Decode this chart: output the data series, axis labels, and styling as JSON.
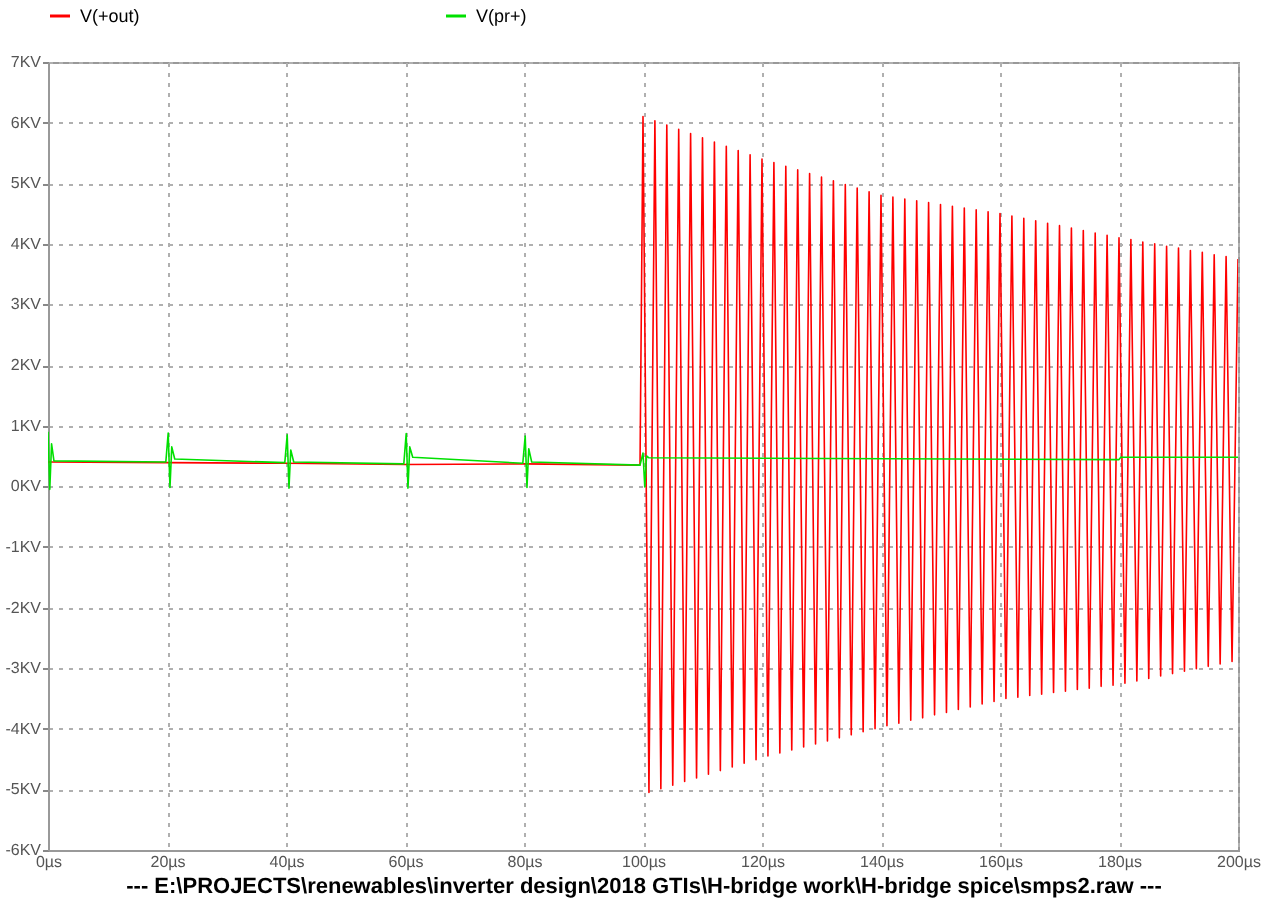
{
  "chart_data": {
    "type": "line",
    "xlabel": "---  E:\\PROJECTS\\renewables\\inverter design\\2018 GTIs\\H-bridge work\\H-bridge spice\\smps2.raw  ---",
    "xlim": [
      0,
      200
    ],
    "xticks": [
      {
        "value": 0,
        "label": "0µs"
      },
      {
        "value": 20,
        "label": "20µs"
      },
      {
        "value": 40,
        "label": "40µs"
      },
      {
        "value": 60,
        "label": "60µs"
      },
      {
        "value": 80,
        "label": "80µs"
      },
      {
        "value": 100,
        "label": "100µs"
      },
      {
        "value": 120,
        "label": "120µs"
      },
      {
        "value": 140,
        "label": "140µs"
      },
      {
        "value": 160,
        "label": "160µs"
      },
      {
        "value": 180,
        "label": "180µs"
      },
      {
        "value": 200,
        "label": "200µs"
      }
    ],
    "ylim": [
      -6,
      7
    ],
    "yticks": [
      {
        "value": -6,
        "label": "-6KV"
      },
      {
        "value": -5,
        "label": "-5KV"
      },
      {
        "value": -4,
        "label": "-4KV"
      },
      {
        "value": -3,
        "label": "-3KV"
      },
      {
        "value": -2,
        "label": "-2KV"
      },
      {
        "value": -1,
        "label": "-1KV"
      },
      {
        "value": 0,
        "label": "0KV"
      },
      {
        "value": 1,
        "label": "1KV"
      },
      {
        "value": 2,
        "label": "2KV"
      },
      {
        "value": 3,
        "label": "3KV"
      },
      {
        "value": 4,
        "label": "4KV"
      },
      {
        "value": 5,
        "label": "5KV"
      },
      {
        "value": 6,
        "label": "6KV"
      },
      {
        "value": 7,
        "label": "7KV"
      }
    ],
    "grid": true,
    "legend": "top",
    "line_style": "solid",
    "series": [
      {
        "name": "V(+out)",
        "color": "#ff0000",
        "x": [
          0,
          20,
          40,
          60,
          80,
          99.5,
          100,
          101,
          102,
          103,
          104,
          105,
          106,
          107,
          108,
          109,
          110,
          111,
          112,
          113,
          114,
          115,
          116,
          117,
          118,
          119,
          120,
          121,
          122,
          123,
          124,
          125,
          126,
          127,
          128,
          129,
          130,
          131,
          132,
          133,
          134,
          135,
          136,
          137,
          138,
          139,
          140,
          141,
          142,
          143,
          144,
          145,
          146,
          147,
          148,
          149,
          150,
          151,
          152,
          153,
          154,
          155,
          156,
          157,
          158,
          159,
          160,
          161,
          162,
          163,
          164,
          165,
          166,
          167,
          168,
          169,
          170,
          171,
          172,
          173,
          174,
          175,
          176,
          177,
          178,
          179,
          180,
          181,
          182,
          183,
          184,
          185,
          186,
          187,
          188,
          189,
          190,
          191,
          192,
          193,
          194,
          195,
          196,
          197,
          198,
          199,
          200
        ],
        "values": [
          0.4,
          0.39,
          0.38,
          0.36,
          0.37,
          0.35,
          6.1,
          -5.05,
          6.03,
          -4.99,
          5.96,
          -4.93,
          5.89,
          -4.87,
          5.82,
          -4.81,
          5.75,
          -4.75,
          5.68,
          -4.69,
          5.61,
          -4.63,
          5.54,
          -4.57,
          5.47,
          -4.51,
          5.4,
          -4.45,
          5.34,
          -4.4,
          5.28,
          -4.35,
          5.22,
          -4.3,
          5.16,
          -4.25,
          5.1,
          -4.2,
          5.04,
          -4.15,
          4.98,
          -4.1,
          4.92,
          -4.05,
          4.86,
          -4.0,
          4.8,
          -3.95,
          4.77,
          -3.91,
          4.74,
          -3.86,
          4.71,
          -3.82,
          4.68,
          -3.77,
          4.65,
          -3.73,
          4.62,
          -3.68,
          4.59,
          -3.64,
          4.56,
          -3.59,
          4.53,
          -3.55,
          4.5,
          -3.5,
          4.46,
          -3.48,
          4.42,
          -3.45,
          4.38,
          -3.43,
          4.34,
          -3.4,
          4.3,
          -3.38,
          4.26,
          -3.35,
          4.22,
          -3.33,
          4.18,
          -3.3,
          4.14,
          -3.28,
          4.1,
          -3.25,
          4.07,
          -3.21,
          4.03,
          -3.17,
          4.0,
          -3.13,
          3.96,
          -3.09,
          3.93,
          -3.05,
          3.89,
          -3.01,
          3.86,
          -2.97,
          3.82,
          -2.93,
          3.79,
          -2.89,
          3.75
        ]
      },
      {
        "name": "V(pr+)",
        "color": "#00e000",
        "x": [
          0,
          0.3,
          0.6,
          1,
          19.8,
          20.2,
          20.5,
          20.8,
          21.3,
          39.8,
          40.2,
          40.5,
          40.8,
          41.3,
          59.8,
          60.2,
          60.5,
          60.8,
          61.3,
          79.8,
          80.2,
          80.5,
          80.8,
          81.3,
          99.5,
          100,
          100.3,
          100.6,
          101,
          180,
          180.3,
          200
        ],
        "values": [
          0.9,
          -0.05,
          0.7,
          0.42,
          0.4,
          0.88,
          -0.02,
          0.65,
          0.45,
          0.39,
          0.85,
          -0.03,
          0.6,
          0.4,
          0.37,
          0.87,
          -0.03,
          0.65,
          0.48,
          0.38,
          0.83,
          -0.02,
          0.62,
          0.4,
          0.35,
          0.55,
          -0.01,
          0.5,
          0.47,
          0.44,
          0.48,
          0.48
        ]
      }
    ]
  }
}
